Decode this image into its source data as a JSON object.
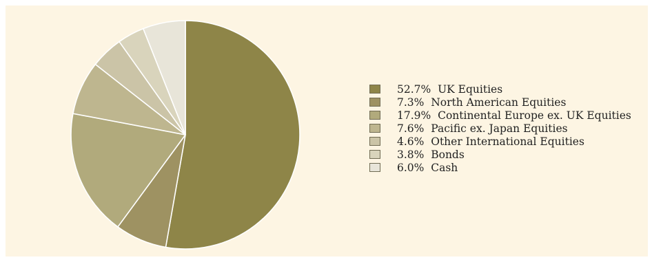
{
  "chart_data": {
    "type": "pie",
    "title": "",
    "start_angle_deg": 0,
    "direction": "clockwise",
    "legend_position": "right",
    "slices": [
      {
        "label": "UK Equities",
        "value": 52.7,
        "value_label": "52.7%",
        "color": "#8e8548"
      },
      {
        "label": "North American Equities",
        "value": 7.3,
        "value_label": "7.3%",
        "color": "#9e9262"
      },
      {
        "label": "Continental Europe ex. UK Equities",
        "value": 17.9,
        "value_label": "17.9%",
        "color": "#b1aa7c"
      },
      {
        "label": "Pacific ex. Japan Equities",
        "value": 7.6,
        "value_label": "7.6%",
        "color": "#beb68f"
      },
      {
        "label": "Other International Equities",
        "value": 4.6,
        "value_label": "4.6%",
        "color": "#cbc4a7"
      },
      {
        "label": "Bonds",
        "value": 3.8,
        "value_label": "3.8%",
        "color": "#d9d4bc"
      },
      {
        "label": "Cash",
        "value": 6.0,
        "value_label": "6.0%",
        "color": "#e8e5d9"
      }
    ]
  }
}
